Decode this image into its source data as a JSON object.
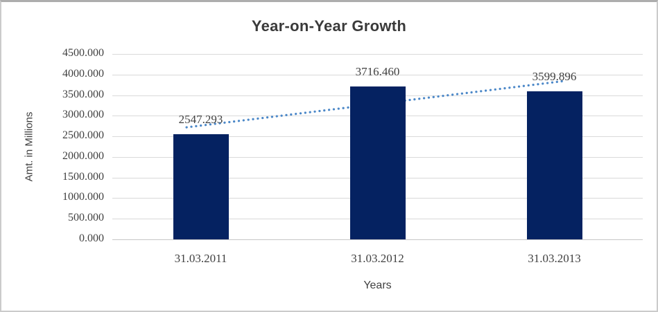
{
  "chart_data": {
    "type": "bar",
    "title": "Year-on-Year Growth",
    "xlabel": "Years",
    "ylabel": "Amt. in Millions",
    "categories": [
      "31.03.2011",
      "31.03.2012",
      "31.03.2013"
    ],
    "values": [
      2547.293,
      3716.46,
      3599.896
    ],
    "data_labels": [
      "2547.293",
      "3716.460",
      "3599.896"
    ],
    "ylim": [
      0,
      4500
    ],
    "ytick_step": 500,
    "ytick_labels": [
      "0.000",
      "500.000",
      "1000.000",
      "1500.000",
      "2000.000",
      "2500.000",
      "3000.000",
      "3500.000",
      "4000.000",
      "4500.000"
    ],
    "grid": true,
    "legend": false,
    "trendline": {
      "type": "linear",
      "style": "dotted"
    },
    "colors": {
      "bar": "#052261",
      "trendline": "#4c88c8",
      "gridline": "#d9d9d9",
      "text": "#404040",
      "title": "#3a3a3a",
      "frame_border": "#cbcbcb"
    }
  }
}
